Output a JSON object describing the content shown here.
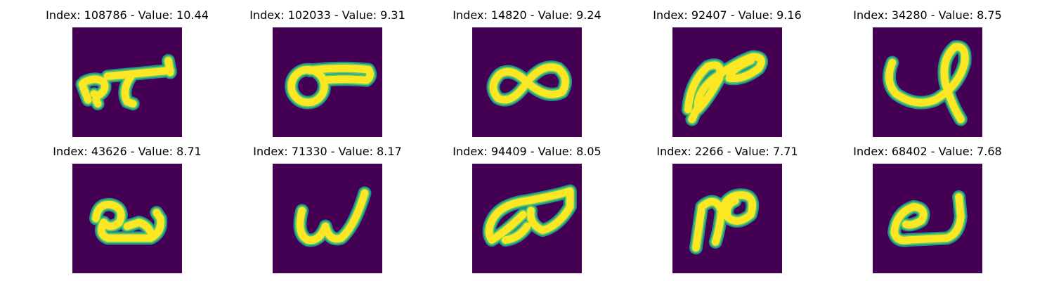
{
  "palette": {
    "background": "#440154",
    "stroke_edge": "#21918c",
    "stroke_mid": "#5ec962",
    "stroke_core": "#fde725"
  },
  "panels": [
    {
      "title": "Index: 108786 - Value: 10.44",
      "index": 108786,
      "value": 10.44
    },
    {
      "title": "Index: 102033 - Value: 9.31",
      "index": 102033,
      "value": 9.31
    },
    {
      "title": "Index: 14820 - Value: 9.24",
      "index": 14820,
      "value": 9.24
    },
    {
      "title": "Index: 92407 - Value: 9.16",
      "index": 92407,
      "value": 9.16
    },
    {
      "title": "Index: 34280 - Value: 8.75",
      "index": 34280,
      "value": 8.75
    },
    {
      "title": "Index: 43626 - Value: 8.71",
      "index": 43626,
      "value": 8.71
    },
    {
      "title": "Index: 71330 - Value: 8.17",
      "index": 71330,
      "value": 8.17
    },
    {
      "title": "Index: 94409 - Value: 8.05",
      "index": 94409,
      "value": 8.05
    },
    {
      "title": "Index: 2266 - Value: 7.71",
      "index": 2266,
      "value": 7.71
    },
    {
      "title": "Index: 68402 - Value: 7.68",
      "index": 68402,
      "value": 7.68
    }
  ]
}
